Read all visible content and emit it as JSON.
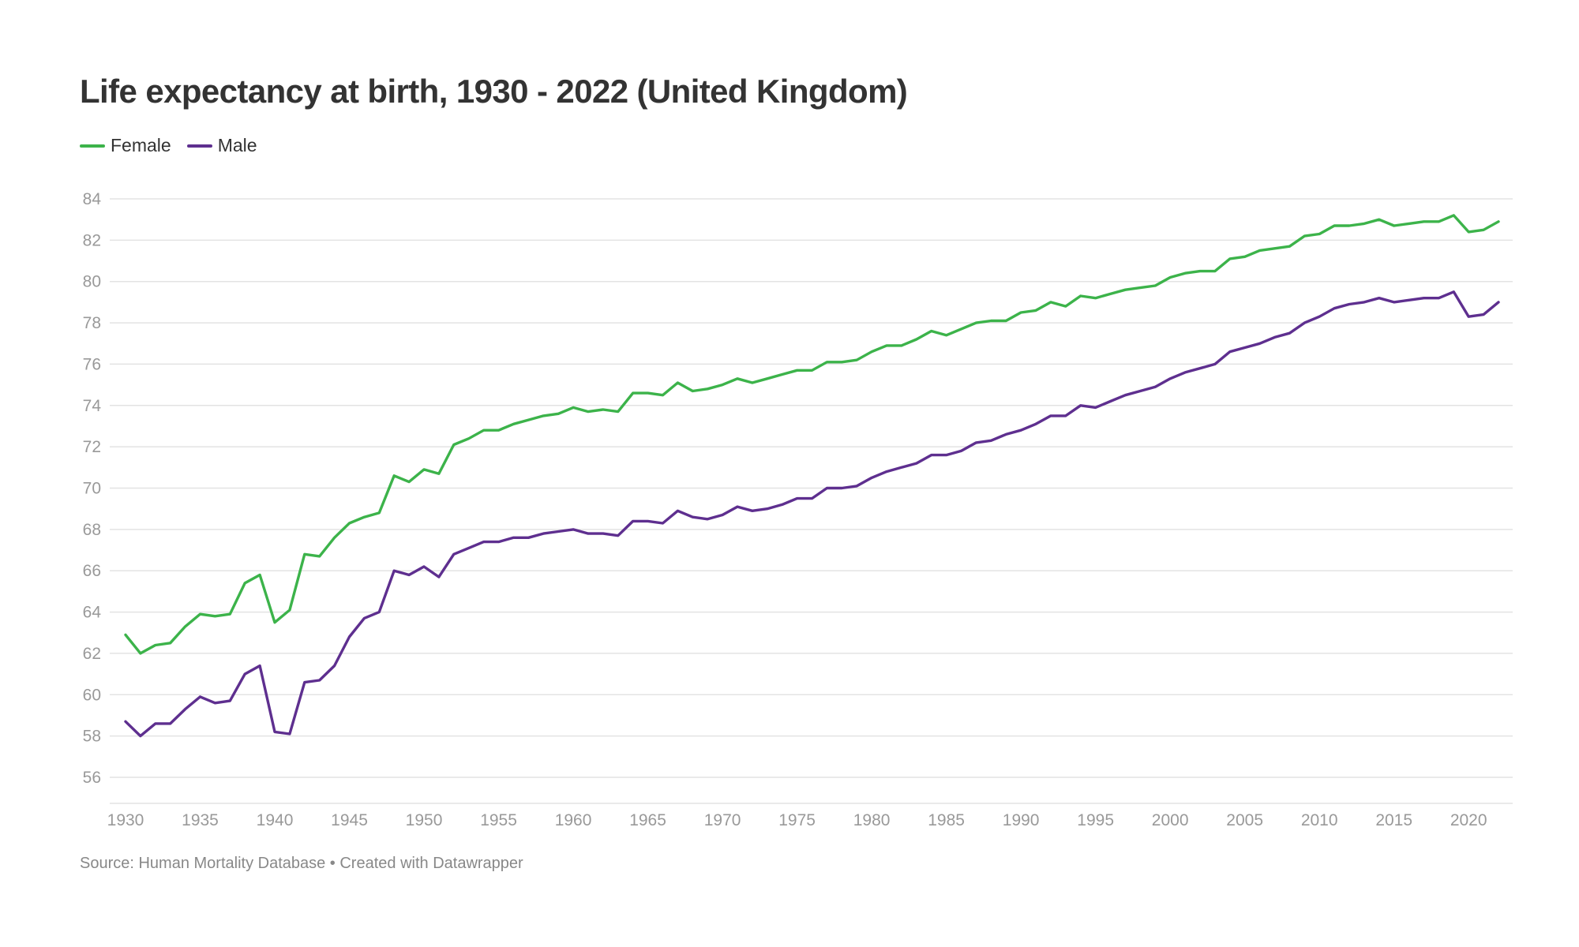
{
  "header": {
    "title": "Life expectancy at birth, 1930 - 2022 (United Kingdom)"
  },
  "footer": {
    "source": "Source: Human Mortality Database • Created with Datawrapper"
  },
  "chart_data": {
    "type": "line",
    "title": "Life expectancy at birth, 1930 - 2022 (United Kingdom)",
    "xlabel": "",
    "ylabel": "",
    "xlim": [
      1930,
      2022
    ],
    "ylim": [
      55,
      84
    ],
    "x_ticks": [
      1930,
      1935,
      1940,
      1945,
      1950,
      1955,
      1960,
      1965,
      1970,
      1975,
      1980,
      1985,
      1990,
      1995,
      2000,
      2005,
      2010,
      2015,
      2020
    ],
    "y_ticks": [
      56,
      58,
      60,
      62,
      64,
      66,
      68,
      70,
      72,
      74,
      76,
      78,
      80,
      82,
      84
    ],
    "grid": "horizontal",
    "legend_position": "top-left",
    "x": [
      1930,
      1931,
      1932,
      1933,
      1934,
      1935,
      1936,
      1937,
      1938,
      1939,
      1940,
      1941,
      1942,
      1943,
      1944,
      1945,
      1946,
      1947,
      1948,
      1949,
      1950,
      1951,
      1952,
      1953,
      1954,
      1955,
      1956,
      1957,
      1958,
      1959,
      1960,
      1961,
      1962,
      1963,
      1964,
      1965,
      1966,
      1967,
      1968,
      1969,
      1970,
      1971,
      1972,
      1973,
      1974,
      1975,
      1976,
      1977,
      1978,
      1979,
      1980,
      1981,
      1982,
      1983,
      1984,
      1985,
      1986,
      1987,
      1988,
      1989,
      1990,
      1991,
      1992,
      1993,
      1994,
      1995,
      1996,
      1997,
      1998,
      1999,
      2000,
      2001,
      2002,
      2003,
      2004,
      2005,
      2006,
      2007,
      2008,
      2009,
      2010,
      2011,
      2012,
      2013,
      2014,
      2015,
      2016,
      2017,
      2018,
      2019,
      2020,
      2021,
      2022
    ],
    "series": [
      {
        "name": "Female",
        "color": "#3cb34a",
        "values": [
          62.9,
          62.0,
          62.4,
          62.5,
          63.3,
          63.9,
          63.8,
          63.9,
          65.4,
          65.8,
          63.5,
          64.1,
          66.8,
          66.7,
          67.6,
          68.3,
          68.6,
          68.8,
          70.6,
          70.3,
          70.9,
          70.7,
          72.1,
          72.4,
          72.8,
          72.8,
          73.1,
          73.3,
          73.5,
          73.6,
          73.9,
          73.7,
          73.8,
          73.7,
          74.6,
          74.6,
          74.5,
          75.1,
          74.7,
          74.8,
          75.0,
          75.3,
          75.1,
          75.3,
          75.5,
          75.7,
          75.7,
          76.1,
          76.1,
          76.2,
          76.6,
          76.9,
          76.9,
          77.2,
          77.6,
          77.4,
          77.7,
          78.0,
          78.1,
          78.1,
          78.5,
          78.6,
          79.0,
          78.8,
          79.3,
          79.2,
          79.4,
          79.6,
          79.7,
          79.8,
          80.2,
          80.4,
          80.5,
          80.5,
          81.1,
          81.2,
          81.5,
          81.6,
          81.7,
          82.2,
          82.3,
          82.7,
          82.7,
          82.8,
          83.0,
          82.7,
          82.8,
          82.9,
          82.9,
          83.2,
          82.4,
          82.5,
          82.9
        ]
      },
      {
        "name": "Male",
        "color": "#5e2f8f",
        "values": [
          58.7,
          58.0,
          58.6,
          58.6,
          59.3,
          59.9,
          59.6,
          59.7,
          61.0,
          61.4,
          58.2,
          58.1,
          60.6,
          60.7,
          61.4,
          62.8,
          63.7,
          64.0,
          66.0,
          65.8,
          66.2,
          65.7,
          66.8,
          67.1,
          67.4,
          67.4,
          67.6,
          67.6,
          67.8,
          67.9,
          68.0,
          67.8,
          67.8,
          67.7,
          68.4,
          68.4,
          68.3,
          68.9,
          68.6,
          68.5,
          68.7,
          69.1,
          68.9,
          69.0,
          69.2,
          69.5,
          69.5,
          70.0,
          70.0,
          70.1,
          70.5,
          70.8,
          71.0,
          71.2,
          71.6,
          71.6,
          71.8,
          72.2,
          72.3,
          72.6,
          72.8,
          73.1,
          73.5,
          73.5,
          74.0,
          73.9,
          74.2,
          74.5,
          74.7,
          74.9,
          75.3,
          75.6,
          75.8,
          76.0,
          76.6,
          76.8,
          77.0,
          77.3,
          77.5,
          78.0,
          78.3,
          78.7,
          78.9,
          79.0,
          79.2,
          79.0,
          79.1,
          79.2,
          79.2,
          79.5,
          78.3,
          78.4,
          79.0
        ]
      }
    ]
  }
}
